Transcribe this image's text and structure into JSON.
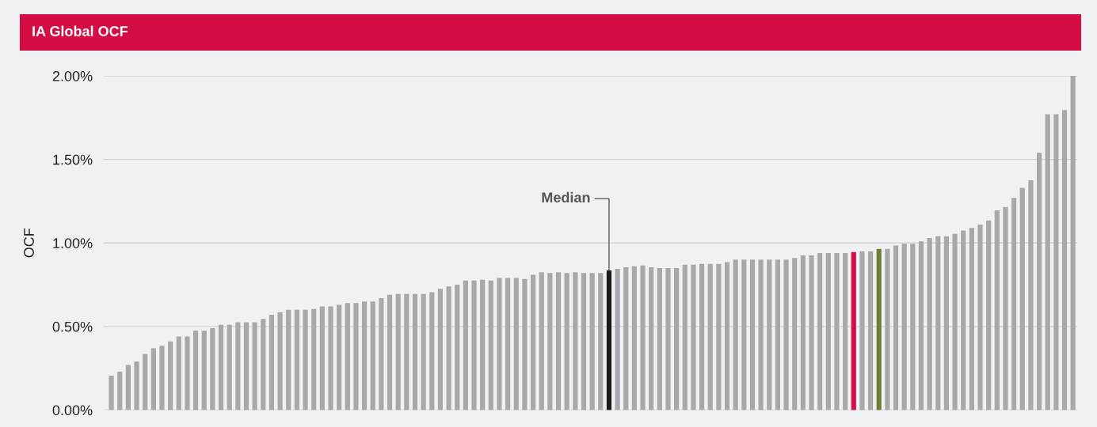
{
  "chart_data": {
    "type": "bar",
    "title": "IA Global OCF",
    "ylabel": "OCF",
    "categories": [
      null,
      null,
      null,
      null,
      null,
      null,
      null,
      null,
      null,
      null,
      null,
      null,
      null,
      null,
      null,
      null,
      null,
      null,
      null,
      null,
      null,
      null,
      null,
      null,
      null,
      null,
      null,
      null,
      null,
      null,
      null,
      null,
      null,
      null,
      null,
      null,
      null,
      null,
      null,
      null,
      null,
      null,
      null,
      null,
      null,
      null,
      null,
      null,
      null,
      null,
      null,
      null,
      null,
      null,
      null,
      null,
      null,
      null,
      null,
      null,
      null,
      null,
      null,
      null,
      null,
      null,
      null,
      null,
      null,
      null,
      null,
      null,
      null,
      null,
      null,
      null,
      null,
      null,
      null,
      null,
      null,
      null,
      null,
      null,
      null,
      null,
      null,
      null,
      null,
      null,
      null,
      null,
      null,
      null,
      null,
      null,
      null,
      null,
      null,
      null,
      null,
      null,
      null,
      null,
      null,
      null,
      null,
      null,
      null,
      null,
      null,
      null,
      null,
      null,
      null
    ],
    "values": [
      0.205,
      0.23,
      0.27,
      0.29,
      0.335,
      0.37,
      0.385,
      0.41,
      0.44,
      0.44,
      0.475,
      0.475,
      0.49,
      0.51,
      0.51,
      0.525,
      0.525,
      0.525,
      0.545,
      0.57,
      0.585,
      0.6,
      0.6,
      0.6,
      0.605,
      0.62,
      0.62,
      0.63,
      0.64,
      0.64,
      0.65,
      0.65,
      0.67,
      0.69,
      0.695,
      0.695,
      0.695,
      0.695,
      0.705,
      0.725,
      0.74,
      0.75,
      0.775,
      0.775,
      0.78,
      0.775,
      0.79,
      0.79,
      0.79,
      0.785,
      0.81,
      0.825,
      0.82,
      0.825,
      0.82,
      0.825,
      0.82,
      0.82,
      0.82,
      0.835,
      0.845,
      0.855,
      0.86,
      0.865,
      0.855,
      0.85,
      0.85,
      0.85,
      0.87,
      0.87,
      0.875,
      0.875,
      0.875,
      0.885,
      0.9,
      0.9,
      0.9,
      0.9,
      0.9,
      0.9,
      0.9,
      0.91,
      0.925,
      0.925,
      0.94,
      0.94,
      0.94,
      0.94,
      0.945,
      0.95,
      0.95,
      0.965,
      0.965,
      0.985,
      0.995,
      0.995,
      1.01,
      1.03,
      1.04,
      1.04,
      1.055,
      1.075,
      1.09,
      1.11,
      1.135,
      1.195,
      1.215,
      1.27,
      1.33,
      1.375,
      1.54,
      1.77,
      1.77,
      1.795,
      2.0
    ],
    "colors": [
      "#a7a8ab",
      "#a7a8ab",
      "#a7a8ab",
      "#a7a8ab",
      "#a7a8ab",
      "#a7a8ab",
      "#a7a8ab",
      "#a7a8ab",
      "#a7a8ab",
      "#a7a8ab",
      "#a7a8ab",
      "#a7a8ab",
      "#a7a8ab",
      "#a7a8ab",
      "#a7a8ab",
      "#a7a8ab",
      "#a7a8ab",
      "#a7a8ab",
      "#a7a8ab",
      "#a7a8ab",
      "#a7a8ab",
      "#a7a8ab",
      "#a7a8ab",
      "#a7a8ab",
      "#a7a8ab",
      "#a7a8ab",
      "#a7a8ab",
      "#a7a8ab",
      "#a7a8ab",
      "#a7a8ab",
      "#a7a8ab",
      "#a7a8ab",
      "#a7a8ab",
      "#a7a8ab",
      "#a7a8ab",
      "#a7a8ab",
      "#a7a8ab",
      "#a7a8ab",
      "#a7a8ab",
      "#a7a8ab",
      "#a7a8ab",
      "#a7a8ab",
      "#a7a8ab",
      "#a7a8ab",
      "#a7a8ab",
      "#a7a8ab",
      "#a7a8ab",
      "#a7a8ab",
      "#a7a8ab",
      "#a7a8ab",
      "#a7a8ab",
      "#a7a8ab",
      "#a7a8ab",
      "#a7a8ab",
      "#a7a8ab",
      "#a7a8ab",
      "#a7a8ab",
      "#a7a8ab",
      "#a7a8ab",
      "#1a1a1a",
      "#a7a8ab",
      "#a7a8ab",
      "#a7a8ab",
      "#a7a8ab",
      "#a7a8ab",
      "#a7a8ab",
      "#a7a8ab",
      "#a7a8ab",
      "#a7a8ab",
      "#a7a8ab",
      "#a7a8ab",
      "#a7a8ab",
      "#a7a8ab",
      "#a7a8ab",
      "#a7a8ab",
      "#a7a8ab",
      "#a7a8ab",
      "#a7a8ab",
      "#a7a8ab",
      "#a7a8ab",
      "#a7a8ab",
      "#a7a8ab",
      "#a7a8ab",
      "#a7a8ab",
      "#a7a8ab",
      "#a7a8ab",
      "#a7a8ab",
      "#a7a8ab",
      "#d40e45",
      "#a7a8ab",
      "#a7a8ab",
      "#6a7f35",
      "#a7a8ab",
      "#a7a8ab",
      "#a7a8ab",
      "#a7a8ab",
      "#a7a8ab",
      "#a7a8ab",
      "#a7a8ab",
      "#a7a8ab",
      "#a7a8ab",
      "#a7a8ab",
      "#a7a8ab",
      "#a7a8ab",
      "#a7a8ab",
      "#a7a8ab",
      "#a7a8ab",
      "#a7a8ab",
      "#a7a8ab",
      "#a7a8ab",
      "#a7a8ab",
      "#a7a8ab",
      "#a7a8ab",
      "#a7a8ab",
      "#a7a8ab"
    ],
    "ylim": [
      0,
      2.0
    ],
    "yticks": [
      {
        "value": 0,
        "label": "0.00%"
      },
      {
        "value": 0.5,
        "label": "0.50%"
      },
      {
        "value": 1.0,
        "label": "1.00%"
      },
      {
        "value": 1.5,
        "label": "1.50%"
      },
      {
        "value": 2.0,
        "label": "2.00%"
      }
    ],
    "grid": "y",
    "annotations": [
      "Median"
    ]
  }
}
